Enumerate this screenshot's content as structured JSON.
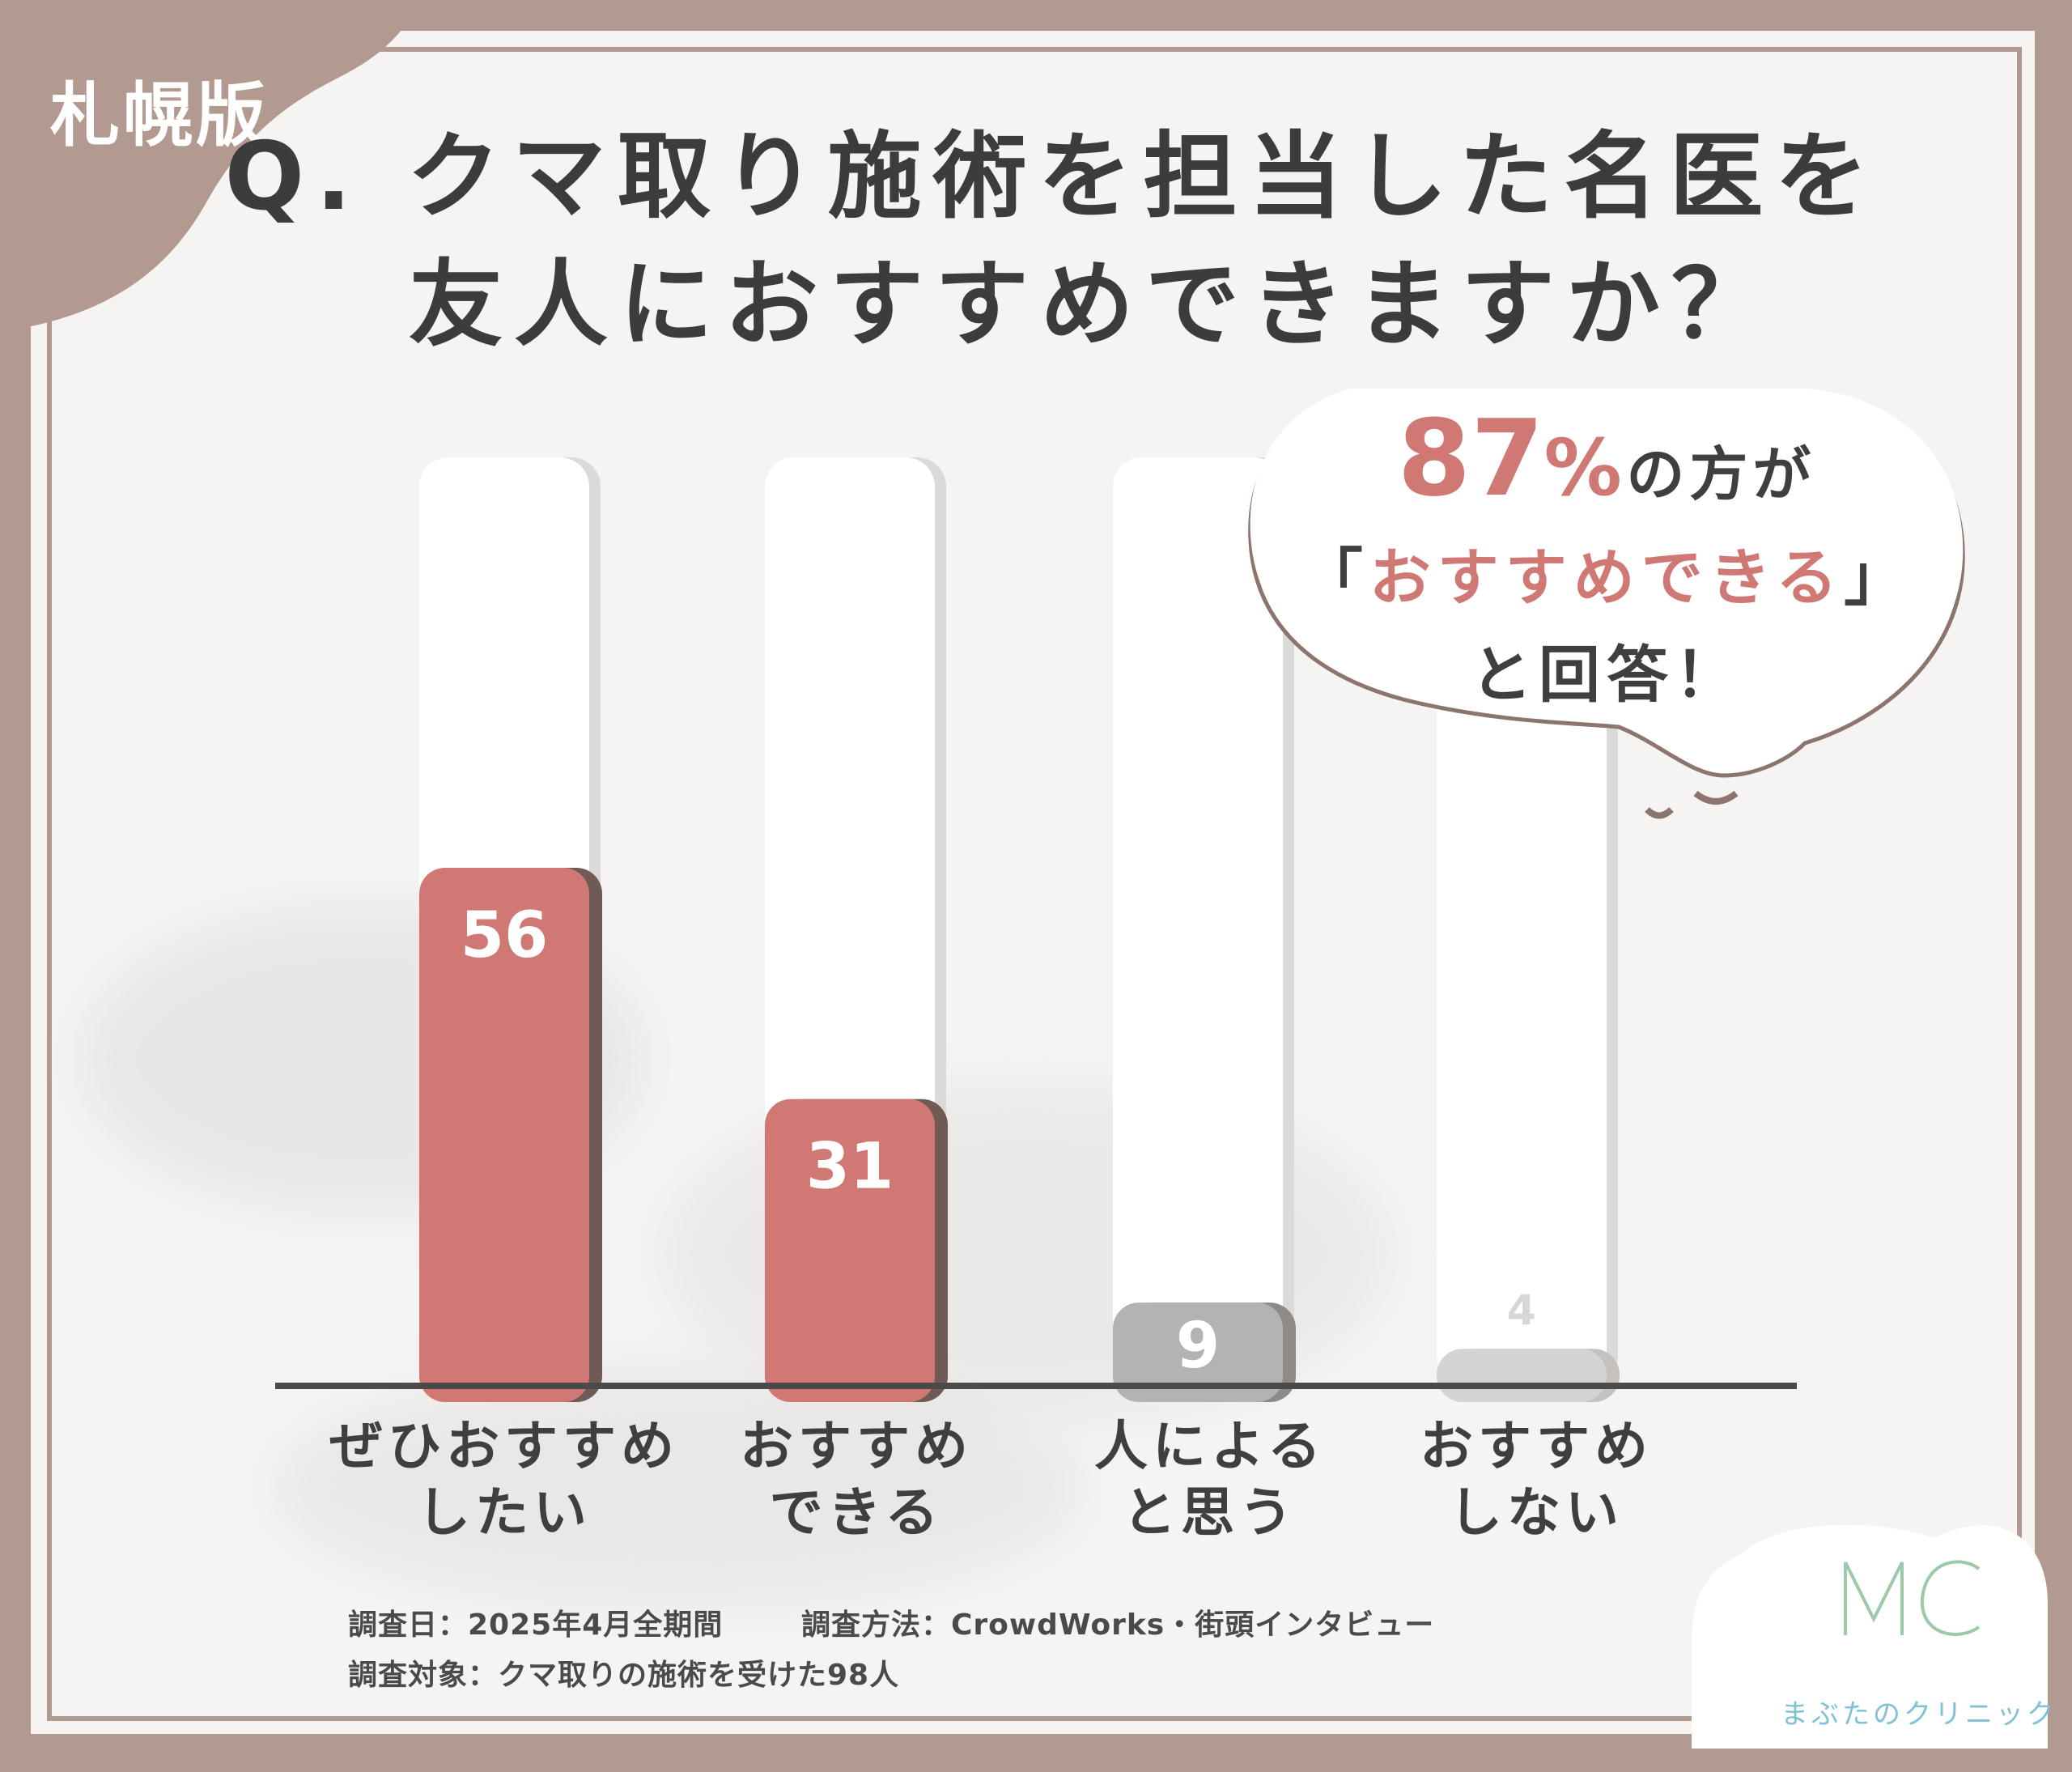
{
  "region_label": "札幌版",
  "title": {
    "line1": "Q. クマ取り施術を担当した名医を",
    "line2": "友人におすすめできますか？"
  },
  "callout": {
    "percent_value": "87",
    "percent_unit": "%",
    "line1_tail": "の方が",
    "line2_open": "「",
    "line2_highlight": "おすすめできる",
    "line2_close": "」",
    "line3": "と回答！"
  },
  "chart_data": {
    "type": "bar",
    "categories": [
      [
        "ぜひおすすめ",
        "したい"
      ],
      [
        "おすすめ",
        "できる"
      ],
      [
        "人による",
        "と思う"
      ],
      [
        "おすすめ",
        "しない"
      ]
    ],
    "values": [
      56,
      31,
      9,
      4
    ],
    "value_labels": [
      "56",
      "31",
      "9",
      "4"
    ],
    "ylim": [
      0,
      100
    ],
    "grid": false,
    "colors": {
      "highlight": "#d07874",
      "neutral": "#b5b3b1",
      "faint": "#d6d4d2",
      "track": "#ffffff",
      "axis": "#4a4a4a"
    }
  },
  "footnotes": {
    "date": "調査日：2025年4月全期間",
    "method": "調査方法：CrowdWorks・街頭インタビュー",
    "subjects": "調査対象：クマ取りの施術を受けた98人"
  },
  "logo": {
    "monogram": "MC",
    "name": "まぶたのクリニック",
    "color": "#7fc1d6"
  }
}
